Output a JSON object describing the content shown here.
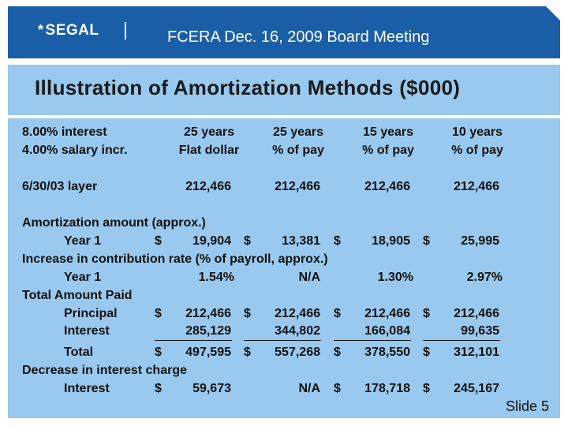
{
  "header": {
    "logo_text": "SEGAL",
    "logo_icon": "asterisk-icon",
    "title": "FCERA Dec. 16, 2009 Board Meeting"
  },
  "slide": {
    "title": "Illustration of Amortization Methods ($000)",
    "number_label": "Slide 5"
  },
  "table": {
    "assumptions": [
      "8.00% interest",
      "4.00% salary incr."
    ],
    "columns": [
      {
        "line1": "25 years",
        "line2": "Flat dollar"
      },
      {
        "line1": "25 years",
        "line2": "% of pay"
      },
      {
        "line1": "15 years",
        "line2": "% of pay"
      },
      {
        "line1": "10 years",
        "line2": "% of pay"
      }
    ],
    "layer": {
      "label": "6/30/03 layer",
      "values": [
        "212,466",
        "212,466",
        "212,466",
        "212,466"
      ]
    },
    "amortization": {
      "heading": "Amortization amount (approx.)",
      "row_label": "Year 1",
      "values": [
        "19,904",
        "13,381",
        "18,905",
        "25,995"
      ]
    },
    "contribution": {
      "heading": "Increase in contribution rate (% of payroll, approx.)",
      "row_label": "Year 1",
      "values": [
        "1.54%",
        "N/A",
        "1.30%",
        "2.97%"
      ]
    },
    "total_paid": {
      "heading": "Total Amount Paid",
      "principal_label": "Principal",
      "principal": [
        "212,466",
        "212,466",
        "212,466",
        "212,466"
      ],
      "interest_label": "Interest",
      "interest": [
        "285,129",
        "344,802",
        "166,084",
        "99,635"
      ],
      "total_label": "Total",
      "total": [
        "497,595",
        "557,268",
        "378,550",
        "312,101"
      ]
    },
    "decrease": {
      "heading": "Decrease in interest charge",
      "row_label": "Interest",
      "values": [
        "59,673",
        "N/A",
        "178,718",
        "245,167"
      ]
    },
    "currency": "$"
  }
}
